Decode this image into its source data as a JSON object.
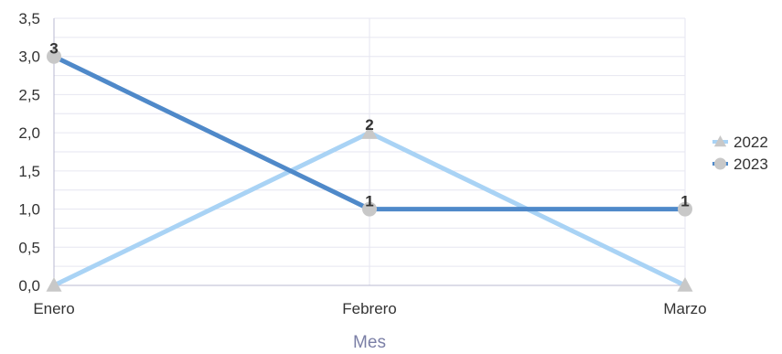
{
  "chart_data": {
    "type": "line",
    "categories": [
      "Enero",
      "Febrero",
      "Marzo"
    ],
    "series": [
      {
        "name": "2022",
        "values": [
          0,
          2,
          0
        ],
        "color": "#a9d3f5",
        "marker": "triangle",
        "data_labels": [
          null,
          "2",
          null
        ]
      },
      {
        "name": "2023",
        "values": [
          3,
          1,
          1
        ],
        "color": "#4f89c9",
        "marker": "circle",
        "data_labels": [
          "3",
          "1",
          "1"
        ]
      }
    ],
    "xlabel": "Mes",
    "ylabel": "",
    "ylim": [
      0,
      3.5
    ],
    "y_ticks": [
      "0,0",
      "0,5",
      "1,0",
      "1,5",
      "2,0",
      "2,5",
      "3,0",
      "3,5"
    ],
    "y_tick_values": [
      0,
      0.5,
      1,
      1.5,
      2,
      2.5,
      3,
      3.5
    ],
    "y_minor_step": 0.25,
    "grid": true,
    "legend_position": "right",
    "marker_color": "#c8c8c8",
    "grid_color": "#e6e6f0",
    "axis_color": "#b8b8d0"
  }
}
